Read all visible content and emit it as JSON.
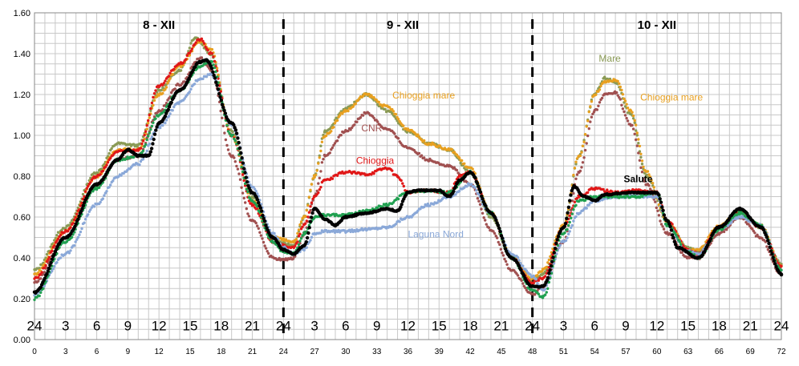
{
  "chart_data": {
    "type": "scatter",
    "xlim": [
      0,
      72
    ],
    "ylim": [
      0.0,
      1.6
    ],
    "grid": true,
    "y_ticks": [
      "0.00",
      "0.20",
      "0.40",
      "0.60",
      "0.80",
      "1.00",
      "1.20",
      "1.40",
      "1.60"
    ],
    "x_ticks": [
      "0",
      "3",
      "6",
      "9",
      "12",
      "15",
      "18",
      "21",
      "24",
      "27",
      "30",
      "33",
      "36",
      "39",
      "42",
      "45",
      "48",
      "51",
      "54",
      "57",
      "60",
      "63",
      "66",
      "69",
      "72"
    ],
    "hour_labels": [
      "24",
      "3",
      "6",
      "9",
      "12",
      "15",
      "18",
      "21",
      "24",
      "3",
      "6",
      "9",
      "12",
      "15",
      "18",
      "21",
      "24",
      "3",
      "6",
      "9",
      "12",
      "15",
      "18",
      "21",
      "24"
    ],
    "day_labels": [
      {
        "text": "8 - XII",
        "x": 12
      },
      {
        "text": "9 - XII",
        "x": 35.5
      },
      {
        "text": "10 - XII",
        "x": 60
      }
    ],
    "day_dividers": [
      24,
      48
    ],
    "series": [
      {
        "name": "Mare",
        "color": "#8a9a55",
        "label_x": 54.4,
        "label_y": 1.36,
        "points": [
          [
            0,
            0.34
          ],
          [
            3,
            0.55
          ],
          [
            6,
            0.82
          ],
          [
            8,
            0.96
          ],
          [
            10,
            0.95
          ],
          [
            12,
            1.22
          ],
          [
            14,
            1.32
          ],
          [
            15.5,
            1.48
          ],
          [
            17,
            1.4
          ],
          [
            19,
            1.02
          ],
          [
            21,
            0.7
          ],
          [
            23,
            0.5
          ],
          [
            24,
            0.47
          ],
          [
            25,
            0.46
          ],
          [
            26,
            0.6
          ],
          [
            27,
            0.8
          ],
          [
            28,
            1.02
          ],
          [
            30,
            1.13
          ],
          [
            32,
            1.2
          ],
          [
            34,
            1.12
          ],
          [
            36,
            1.02
          ],
          [
            38,
            0.96
          ],
          [
            40,
            0.93
          ],
          [
            42,
            0.82
          ],
          [
            44,
            0.6
          ],
          [
            46,
            0.4
          ],
          [
            48,
            0.28
          ],
          [
            49,
            0.32
          ],
          [
            51,
            0.55
          ],
          [
            52.5,
            0.9
          ],
          [
            54,
            1.2
          ],
          [
            55,
            1.28
          ],
          [
            56,
            1.26
          ],
          [
            57.5,
            1.1
          ],
          [
            59,
            0.8
          ],
          [
            61,
            0.58
          ],
          [
            63,
            0.45
          ],
          [
            64,
            0.43
          ],
          [
            66,
            0.55
          ],
          [
            68,
            0.63
          ],
          [
            70,
            0.55
          ],
          [
            72,
            0.37
          ]
        ]
      },
      {
        "name": "Chioggia mare",
        "color": "#e8a020",
        "label_x": 34.5,
        "label_y": 1.18,
        "points": [
          [
            0,
            0.32
          ],
          [
            3,
            0.53
          ],
          [
            6,
            0.8
          ],
          [
            8,
            0.93
          ],
          [
            10,
            0.93
          ],
          [
            12,
            1.2
          ],
          [
            14,
            1.34
          ],
          [
            16,
            1.46
          ],
          [
            17,
            1.42
          ],
          [
            19,
            1.0
          ],
          [
            21,
            0.68
          ],
          [
            23,
            0.5
          ],
          [
            24,
            0.49
          ],
          [
            25,
            0.48
          ],
          [
            26,
            0.6
          ],
          [
            27,
            0.8
          ],
          [
            28,
            1.0
          ],
          [
            30,
            1.12
          ],
          [
            32,
            1.2
          ],
          [
            34,
            1.14
          ],
          [
            36,
            1.03
          ],
          [
            38,
            0.96
          ],
          [
            40,
            0.93
          ],
          [
            42,
            0.84
          ],
          [
            44,
            0.62
          ],
          [
            46,
            0.41
          ],
          [
            48,
            0.3
          ],
          [
            49,
            0.34
          ],
          [
            51,
            0.56
          ],
          [
            52.5,
            0.9
          ],
          [
            54,
            1.2
          ],
          [
            55,
            1.26
          ],
          [
            56,
            1.27
          ],
          [
            57.5,
            1.12
          ],
          [
            59,
            0.82
          ],
          [
            61,
            0.58
          ],
          [
            63,
            0.44
          ],
          [
            64,
            0.44
          ],
          [
            66,
            0.56
          ],
          [
            68,
            0.62
          ],
          [
            70,
            0.56
          ],
          [
            72,
            0.36
          ]
        ],
        "label2_x": 58.4,
        "label2_y": 1.17
      },
      {
        "name": "CNR",
        "color": "#a05050",
        "label_x": 31.5,
        "label_y": 1.02,
        "points": [
          [
            0,
            0.28
          ],
          [
            3,
            0.5
          ],
          [
            6,
            0.75
          ],
          [
            8,
            0.88
          ],
          [
            10,
            0.9
          ],
          [
            12,
            1.12
          ],
          [
            14,
            1.25
          ],
          [
            16,
            1.38
          ],
          [
            17,
            1.32
          ],
          [
            19,
            0.9
          ],
          [
            21,
            0.58
          ],
          [
            23,
            0.4
          ],
          [
            24,
            0.39
          ],
          [
            25,
            0.4
          ],
          [
            26,
            0.52
          ],
          [
            27,
            0.7
          ],
          [
            28,
            0.9
          ],
          [
            30,
            1.02
          ],
          [
            32,
            1.11
          ],
          [
            34,
            1.03
          ],
          [
            36,
            0.94
          ],
          [
            38,
            0.88
          ],
          [
            40,
            0.85
          ],
          [
            42,
            0.76
          ],
          [
            44,
            0.54
          ],
          [
            46,
            0.34
          ],
          [
            48,
            0.22
          ],
          [
            49,
            0.26
          ],
          [
            51,
            0.48
          ],
          [
            52.5,
            0.82
          ],
          [
            54,
            1.12
          ],
          [
            55,
            1.2
          ],
          [
            56,
            1.21
          ],
          [
            57.5,
            1.05
          ],
          [
            59,
            0.76
          ],
          [
            61,
            0.52
          ],
          [
            63,
            0.4
          ],
          [
            64,
            0.4
          ],
          [
            66,
            0.52
          ],
          [
            68,
            0.6
          ],
          [
            70,
            0.5
          ],
          [
            72,
            0.32
          ]
        ]
      },
      {
        "name": "Chioggia",
        "color": "#e01818",
        "label_x": 31.0,
        "label_y": 0.86,
        "points": [
          [
            0,
            0.3
          ],
          [
            3,
            0.53
          ],
          [
            6,
            0.8
          ],
          [
            8,
            0.92
          ],
          [
            10,
            0.93
          ],
          [
            12,
            1.24
          ],
          [
            14,
            1.35
          ],
          [
            16,
            1.47
          ],
          [
            17,
            1.4
          ],
          [
            19,
            1.0
          ],
          [
            21,
            0.66
          ],
          [
            23,
            0.48
          ],
          [
            24,
            0.46
          ],
          [
            25,
            0.45
          ],
          [
            26,
            0.56
          ],
          [
            27,
            0.7
          ],
          [
            28,
            0.78
          ],
          [
            30,
            0.82
          ],
          [
            32,
            0.81
          ],
          [
            34,
            0.84
          ],
          [
            35,
            0.8
          ],
          [
            36,
            0.72
          ],
          [
            38,
            0.73
          ],
          [
            40,
            0.72
          ],
          [
            41,
            0.8
          ],
          [
            42,
            0.82
          ],
          [
            44,
            0.62
          ],
          [
            46,
            0.4
          ],
          [
            48,
            0.28
          ],
          [
            49,
            0.3
          ],
          [
            51,
            0.55
          ],
          [
            52.5,
            0.7
          ],
          [
            54,
            0.74
          ],
          [
            56,
            0.72
          ],
          [
            58,
            0.73
          ],
          [
            60,
            0.72
          ],
          [
            61,
            0.58
          ],
          [
            63,
            0.44
          ],
          [
            64,
            0.42
          ],
          [
            66,
            0.55
          ],
          [
            68,
            0.62
          ],
          [
            70,
            0.55
          ],
          [
            72,
            0.36
          ]
        ]
      },
      {
        "name": "Laguna Nord",
        "color": "#8aa8d8",
        "label_x": 36.0,
        "label_y": 0.5,
        "points": [
          [
            0,
            0.22
          ],
          [
            3,
            0.42
          ],
          [
            6,
            0.66
          ],
          [
            8,
            0.8
          ],
          [
            10,
            0.86
          ],
          [
            12,
            1.04
          ],
          [
            14,
            1.16
          ],
          [
            16,
            1.28
          ],
          [
            17,
            1.3
          ],
          [
            19,
            1.05
          ],
          [
            21,
            0.75
          ],
          [
            23,
            0.52
          ],
          [
            24,
            0.45
          ],
          [
            25,
            0.42
          ],
          [
            26,
            0.44
          ],
          [
            27,
            0.52
          ],
          [
            28,
            0.53
          ],
          [
            30,
            0.53
          ],
          [
            32,
            0.54
          ],
          [
            34,
            0.55
          ],
          [
            36,
            0.6
          ],
          [
            38,
            0.66
          ],
          [
            40,
            0.7
          ],
          [
            42,
            0.76
          ],
          [
            44,
            0.62
          ],
          [
            46,
            0.42
          ],
          [
            48,
            0.31
          ],
          [
            49,
            0.24
          ],
          [
            51,
            0.48
          ],
          [
            52.5,
            0.62
          ],
          [
            54,
            0.68
          ],
          [
            56,
            0.7
          ],
          [
            58,
            0.7
          ],
          [
            60,
            0.7
          ],
          [
            61,
            0.56
          ],
          [
            63,
            0.43
          ],
          [
            64,
            0.42
          ],
          [
            66,
            0.54
          ],
          [
            68,
            0.6
          ],
          [
            70,
            0.56
          ],
          [
            72,
            0.34
          ]
        ]
      },
      {
        "name": "",
        "color": "#20a050",
        "points": [
          [
            0,
            0.2
          ],
          [
            3,
            0.48
          ],
          [
            6,
            0.74
          ],
          [
            8,
            0.88
          ],
          [
            10,
            0.9
          ],
          [
            12,
            1.1
          ],
          [
            14,
            1.22
          ],
          [
            16,
            1.34
          ],
          [
            17,
            1.36
          ],
          [
            19,
            1.0
          ],
          [
            21,
            0.68
          ],
          [
            23,
            0.48
          ],
          [
            24,
            0.43
          ],
          [
            25,
            0.42
          ],
          [
            26,
            0.52
          ],
          [
            27,
            0.6
          ],
          [
            28,
            0.61
          ],
          [
            30,
            0.61
          ],
          [
            32,
            0.63
          ],
          [
            34,
            0.66
          ],
          [
            36,
            0.72
          ],
          [
            38,
            0.73
          ],
          [
            40,
            0.72
          ],
          [
            42,
            0.82
          ],
          [
            44,
            0.62
          ],
          [
            46,
            0.4
          ],
          [
            48,
            0.24
          ],
          [
            49,
            0.21
          ],
          [
            51,
            0.52
          ],
          [
            52.5,
            0.68
          ],
          [
            54,
            0.7
          ],
          [
            56,
            0.7
          ],
          [
            58,
            0.7
          ],
          [
            60,
            0.72
          ],
          [
            61,
            0.56
          ],
          [
            63,
            0.43
          ],
          [
            64,
            0.4
          ],
          [
            66,
            0.54
          ],
          [
            68,
            0.62
          ],
          [
            70,
            0.56
          ],
          [
            72,
            0.34
          ]
        ]
      },
      {
        "name": "Salute",
        "color": "#000000",
        "label_x": 56.8,
        "label_y": 0.77,
        "bold": true,
        "points": [
          [
            0,
            0.23
          ],
          [
            3,
            0.5
          ],
          [
            6,
            0.76
          ],
          [
            8,
            0.88
          ],
          [
            9,
            0.93
          ],
          [
            10,
            0.9
          ],
          [
            11,
            0.9
          ],
          [
            12,
            1.06
          ],
          [
            14,
            1.22
          ],
          [
            16,
            1.36
          ],
          [
            16.5,
            1.37
          ],
          [
            19,
            1.06
          ],
          [
            21,
            0.72
          ],
          [
            23,
            0.5
          ],
          [
            24,
            0.44
          ],
          [
            25,
            0.42
          ],
          [
            26,
            0.46
          ],
          [
            27,
            0.64
          ],
          [
            28,
            0.59
          ],
          [
            29,
            0.56
          ],
          [
            30,
            0.6
          ],
          [
            32,
            0.62
          ],
          [
            34,
            0.64
          ],
          [
            35,
            0.63
          ],
          [
            36,
            0.72
          ],
          [
            37,
            0.73
          ],
          [
            39,
            0.73
          ],
          [
            40,
            0.7
          ],
          [
            41,
            0.78
          ],
          [
            42,
            0.82
          ],
          [
            44,
            0.62
          ],
          [
            46,
            0.4
          ],
          [
            48,
            0.26
          ],
          [
            49,
            0.26
          ],
          [
            51,
            0.55
          ],
          [
            52,
            0.75
          ],
          [
            53,
            0.7
          ],
          [
            54,
            0.68
          ],
          [
            55,
            0.71
          ],
          [
            57,
            0.72
          ],
          [
            60,
            0.72
          ],
          [
            61,
            0.58
          ],
          [
            62,
            0.45
          ],
          [
            64,
            0.4
          ],
          [
            66,
            0.55
          ],
          [
            68,
            0.64
          ],
          [
            70,
            0.55
          ],
          [
            72,
            0.32
          ]
        ]
      }
    ]
  }
}
